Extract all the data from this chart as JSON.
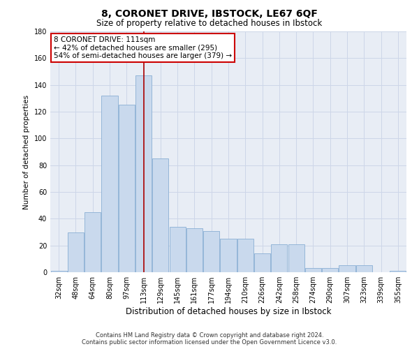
{
  "title1": "8, CORONET DRIVE, IBSTOCK, LE67 6QF",
  "title2": "Size of property relative to detached houses in Ibstock",
  "xlabel": "Distribution of detached houses by size in Ibstock",
  "ylabel": "Number of detached properties",
  "categories": [
    "32sqm",
    "48sqm",
    "64sqm",
    "80sqm",
    "97sqm",
    "113sqm",
    "129sqm",
    "145sqm",
    "161sqm",
    "177sqm",
    "194sqm",
    "210sqm",
    "226sqm",
    "242sqm",
    "258sqm",
    "274sqm",
    "290sqm",
    "307sqm",
    "323sqm",
    "339sqm",
    "355sqm"
  ],
  "values": [
    1,
    30,
    45,
    132,
    125,
    147,
    85,
    34,
    33,
    31,
    25,
    25,
    14,
    21,
    21,
    3,
    3,
    5,
    5,
    0,
    1
  ],
  "bar_color": "#c9d9ed",
  "bar_edge_color": "#8aafd4",
  "vline_index": 5,
  "vline_color": "#aa0000",
  "annotation_title": "8 CORONET DRIVE: 111sqm",
  "annotation_line1": "← 42% of detached houses are smaller (295)",
  "annotation_line2": "54% of semi-detached houses are larger (379) →",
  "annotation_box_facecolor": "#ffffff",
  "annotation_box_edgecolor": "#cc0000",
  "footnote1": "Contains HM Land Registry data © Crown copyright and database right 2024.",
  "footnote2": "Contains public sector information licensed under the Open Government Licence v3.0.",
  "ylim": [
    0,
    180
  ],
  "yticks": [
    0,
    20,
    40,
    60,
    80,
    100,
    120,
    140,
    160,
    180
  ],
  "grid_color": "#cdd6e8",
  "bg_color": "#e8edf5",
  "title1_fontsize": 10,
  "title2_fontsize": 8.5,
  "xlabel_fontsize": 8.5,
  "ylabel_fontsize": 7.5,
  "tick_fontsize": 7,
  "footnote_fontsize": 6,
  "annotation_fontsize": 7.5
}
